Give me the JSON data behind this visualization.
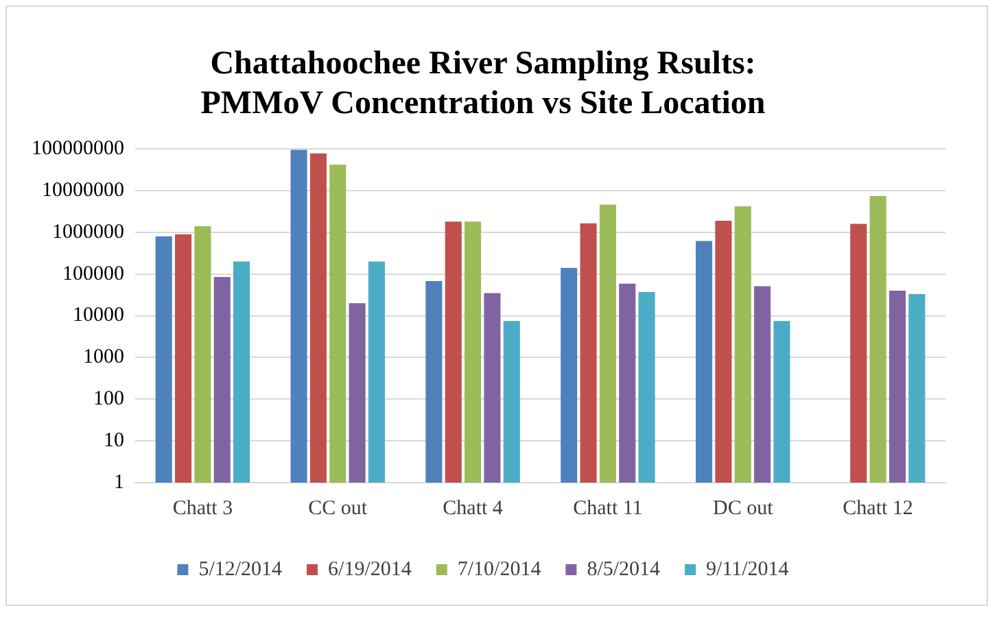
{
  "chart_data": {
    "type": "bar",
    "title": "Chattahoochee River Sampling Rsults:\nPMMoV Concentration vs Site Location",
    "categories": [
      "Chatt 3",
      "CC out",
      "Chatt 4",
      "Chatt 11",
      "DC out",
      "Chatt 12"
    ],
    "series": [
      {
        "name": "5/12/2014",
        "color": "#4f81bd",
        "values": [
          800000,
          95000000,
          68000,
          140000,
          620000,
          null
        ]
      },
      {
        "name": "6/19/2014",
        "color": "#c0504d",
        "values": [
          900000,
          78000000,
          1800000,
          1650000,
          1900000,
          1600000
        ]
      },
      {
        "name": "7/10/2014",
        "color": "#9bbb59",
        "values": [
          1400000,
          42000000,
          1800000,
          4600000,
          4200000,
          7400000
        ]
      },
      {
        "name": "8/5/2014",
        "color": "#8064a2",
        "values": [
          85000,
          20000,
          35000,
          59000,
          51000,
          40000
        ]
      },
      {
        "name": "9/11/2014",
        "color": "#4bacc6",
        "values": [
          200000,
          200000,
          7500,
          37000,
          7500,
          33000
        ]
      }
    ],
    "log": "y",
    "ylim": [
      1,
      100000000
    ],
    "yticks": [
      1,
      10,
      100,
      1000,
      10000,
      100000,
      1000000,
      10000000,
      100000000
    ],
    "grid": "y",
    "legend": "bottom"
  }
}
